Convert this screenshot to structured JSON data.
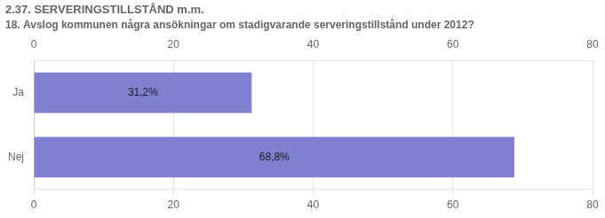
{
  "chart_data": {
    "type": "bar",
    "orientation": "horizontal",
    "title": "2.37. SERVERINGSTILLSTÅND m.m.",
    "subtitle": "18. Avslog kommunen några ansökningar om stadigvarande serveringstillstånd under 2012?",
    "categories": [
      "Ja",
      "Nej"
    ],
    "values": [
      31.2,
      68.8
    ],
    "value_labels": [
      "31,2%",
      "68,8%"
    ],
    "data_labels": true,
    "color": "#8080d0",
    "xlim": [
      0,
      80
    ],
    "xticks": [
      0,
      20,
      40,
      60,
      80
    ],
    "grid": true
  }
}
